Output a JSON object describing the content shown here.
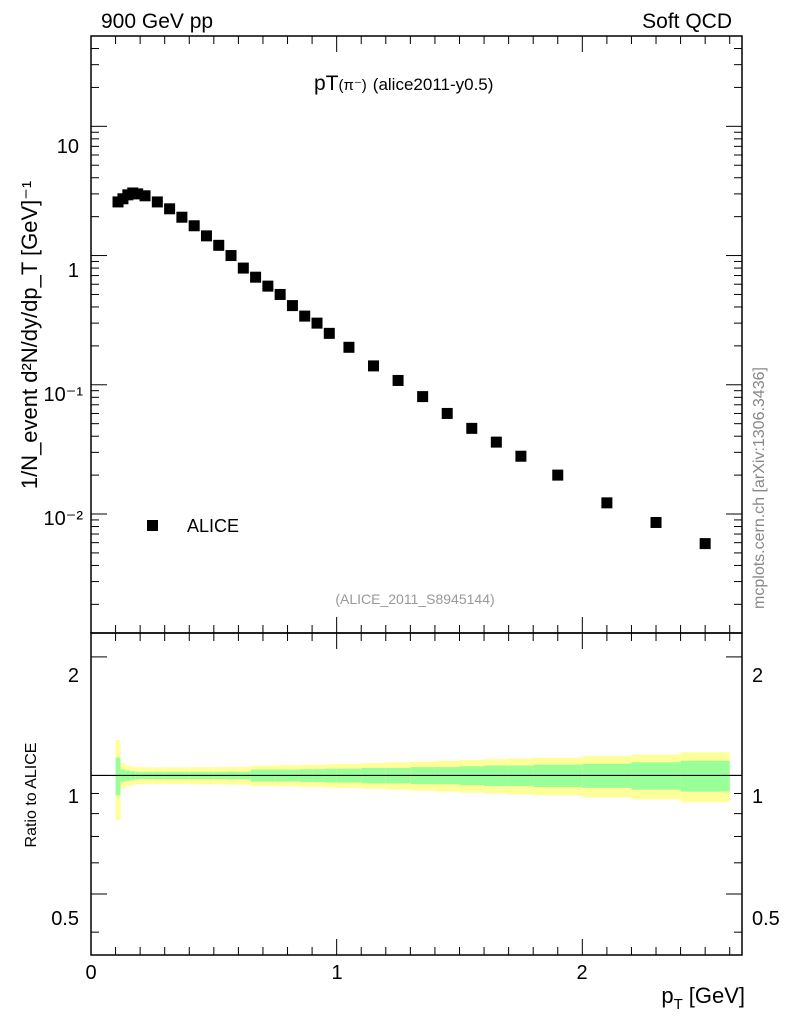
{
  "header": {
    "left": "900 GeV pp",
    "right": "Soft QCD"
  },
  "side_label": "mcplots.cern.ch [arXiv:1306.3436]",
  "chart_data": [
    {
      "type": "scatter",
      "title": "pT(π⁻) (alice2011-y0.5)",
      "title_main": "pT",
      "title_particle": "(π⁻)",
      "title_tag": "(alice2011-y0.5)",
      "ylabel": "1/N_event d²N/dy/dp_T [GeV]⁻¹",
      "yscale": "log",
      "xlim": [
        0,
        2.65
      ],
      "ylim": [
        0.0012,
        50
      ],
      "ytick_labels": [
        "10",
        "1",
        "10⁻¹",
        "10⁻²"
      ],
      "legend": {
        "label": "ALICE",
        "position": "lower-left"
      },
      "analysis_label": "(ALICE_2011_S8945144)",
      "series": [
        {
          "name": "ALICE",
          "marker": "square",
          "color": "#000000",
          "x": [
            0.11,
            0.13,
            0.15,
            0.17,
            0.19,
            0.22,
            0.27,
            0.32,
            0.37,
            0.42,
            0.47,
            0.52,
            0.57,
            0.62,
            0.67,
            0.72,
            0.77,
            0.82,
            0.87,
            0.92,
            0.97,
            1.05,
            1.15,
            1.25,
            1.35,
            1.45,
            1.55,
            1.65,
            1.75,
            1.9,
            2.1,
            2.3,
            2.5
          ],
          "y": [
            2.6,
            2.75,
            2.95,
            3.05,
            3.0,
            2.9,
            2.6,
            2.3,
            1.98,
            1.7,
            1.42,
            1.2,
            1.0,
            0.8,
            0.68,
            0.58,
            0.5,
            0.41,
            0.34,
            0.3,
            0.25,
            0.195,
            0.14,
            0.108,
            0.081,
            0.06,
            0.046,
            0.036,
            0.028,
            0.02,
            0.0122,
            0.0086,
            0.0059
          ]
        }
      ]
    },
    {
      "type": "band",
      "ylabel": "Ratio to ALICE",
      "xlabel": "p_T [GeV]",
      "xlabel_main": "p",
      "xlabel_sub": "T",
      "xlabel_unit": "[GeV]",
      "xlim": [
        0,
        2.65
      ],
      "ylim": [
        0.35,
        2.3
      ],
      "xtick_labels": [
        "0",
        "1",
        "2"
      ],
      "ytick_labels": [
        "0.5",
        "1",
        "2"
      ],
      "reference_line": 1,
      "colors": {
        "stat": "#99ff99",
        "total": "#ffff99"
      },
      "bins": [
        {
          "x0": 0.1,
          "x1": 0.12,
          "stat": 0.11,
          "total": 0.23
        },
        {
          "x0": 0.12,
          "x1": 0.14,
          "stat": 0.035,
          "total": 0.075
        },
        {
          "x0": 0.14,
          "x1": 0.16,
          "stat": 0.03,
          "total": 0.06
        },
        {
          "x0": 0.16,
          "x1": 0.18,
          "stat": 0.025,
          "total": 0.055
        },
        {
          "x0": 0.18,
          "x1": 0.2,
          "stat": 0.022,
          "total": 0.05
        },
        {
          "x0": 0.2,
          "x1": 0.25,
          "stat": 0.02,
          "total": 0.05
        },
        {
          "x0": 0.25,
          "x1": 0.3,
          "stat": 0.02,
          "total": 0.048
        },
        {
          "x0": 0.3,
          "x1": 0.35,
          "stat": 0.02,
          "total": 0.048
        },
        {
          "x0": 0.35,
          "x1": 0.4,
          "stat": 0.02,
          "total": 0.048
        },
        {
          "x0": 0.4,
          "x1": 0.45,
          "stat": 0.02,
          "total": 0.05
        },
        {
          "x0": 0.45,
          "x1": 0.5,
          "stat": 0.02,
          "total": 0.05
        },
        {
          "x0": 0.5,
          "x1": 0.55,
          "stat": 0.02,
          "total": 0.05
        },
        {
          "x0": 0.55,
          "x1": 0.6,
          "stat": 0.022,
          "total": 0.052
        },
        {
          "x0": 0.6,
          "x1": 0.65,
          "stat": 0.022,
          "total": 0.052
        },
        {
          "x0": 0.65,
          "x1": 0.7,
          "stat": 0.035,
          "total": 0.06
        },
        {
          "x0": 0.7,
          "x1": 0.75,
          "stat": 0.035,
          "total": 0.06
        },
        {
          "x0": 0.75,
          "x1": 0.8,
          "stat": 0.035,
          "total": 0.062
        },
        {
          "x0": 0.8,
          "x1": 0.85,
          "stat": 0.035,
          "total": 0.062
        },
        {
          "x0": 0.85,
          "x1": 0.9,
          "stat": 0.037,
          "total": 0.065
        },
        {
          "x0": 0.9,
          "x1": 0.95,
          "stat": 0.037,
          "total": 0.065
        },
        {
          "x0": 0.95,
          "x1": 1.0,
          "stat": 0.04,
          "total": 0.068
        },
        {
          "x0": 1.0,
          "x1": 1.1,
          "stat": 0.04,
          "total": 0.07
        },
        {
          "x0": 1.1,
          "x1": 1.2,
          "stat": 0.045,
          "total": 0.075
        },
        {
          "x0": 1.2,
          "x1": 1.3,
          "stat": 0.045,
          "total": 0.08
        },
        {
          "x0": 1.3,
          "x1": 1.4,
          "stat": 0.05,
          "total": 0.085
        },
        {
          "x0": 1.4,
          "x1": 1.5,
          "stat": 0.05,
          "total": 0.09
        },
        {
          "x0": 1.5,
          "x1": 1.6,
          "stat": 0.055,
          "total": 0.095
        },
        {
          "x0": 1.6,
          "x1": 1.7,
          "stat": 0.06,
          "total": 0.1
        },
        {
          "x0": 1.7,
          "x1": 1.8,
          "stat": 0.06,
          "total": 0.105
        },
        {
          "x0": 1.8,
          "x1": 2.0,
          "stat": 0.065,
          "total": 0.11
        },
        {
          "x0": 2.0,
          "x1": 2.2,
          "stat": 0.07,
          "total": 0.12
        },
        {
          "x0": 2.2,
          "x1": 2.4,
          "stat": 0.08,
          "total": 0.13
        },
        {
          "x0": 2.4,
          "x1": 2.6,
          "stat": 0.09,
          "total": 0.145
        }
      ]
    }
  ]
}
